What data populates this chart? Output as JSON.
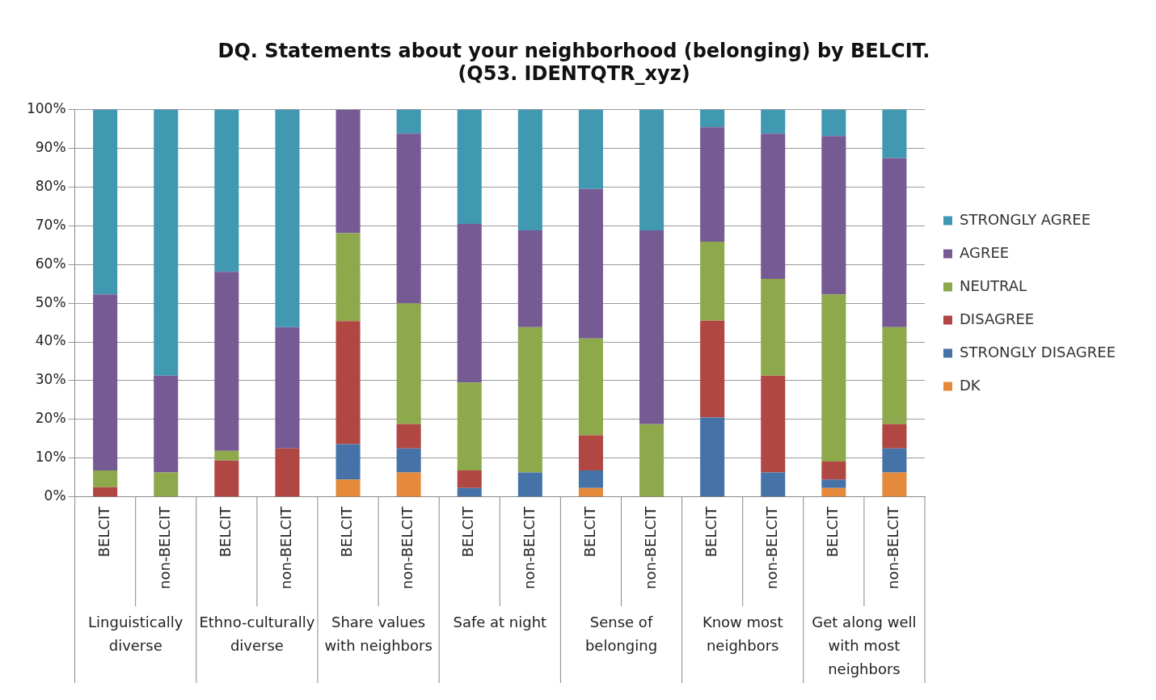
{
  "chart_data": {
    "type": "bar",
    "stacked": true,
    "title": "DQ. Statements about your neighborhood (belonging) by BELCIT.\n(Q53. IDENTQTR_xyz)",
    "categories": [
      "BELCIT",
      "non-BELCIT",
      "BELCIT",
      "non-BELCIT",
      "BELCIT",
      "non-BELCIT",
      "BELCIT",
      "non-BELCIT",
      "BELCIT",
      "non-BELCIT",
      "BELCIT",
      "non-BELCIT",
      "BELCIT",
      "non-BELCIT"
    ],
    "series": [
      {
        "name": "DK",
        "color": "#e58a3a",
        "values": [
          0,
          0,
          0,
          0,
          4.5,
          6.3,
          0,
          0,
          2.3,
          0,
          0,
          0,
          2.3,
          6.3
        ]
      },
      {
        "name": "STRONGLY DISAGREE",
        "color": "#4573a8",
        "values": [
          0,
          0,
          0,
          0,
          9.1,
          6.2,
          2.3,
          6.3,
          4.5,
          0,
          20.5,
          6.3,
          2.2,
          6.2
        ]
      },
      {
        "name": "DISAGREE",
        "color": "#b04743",
        "values": [
          2.5,
          0,
          9.4,
          12.5,
          31.8,
          6.3,
          4.5,
          0,
          9.1,
          0,
          25,
          25,
          4.6,
          6.3
        ]
      },
      {
        "name": "NEUTRAL",
        "color": "#8ea84c",
        "values": [
          4.3,
          6.3,
          2.5,
          0,
          22.7,
          31.2,
          22.7,
          37.5,
          25,
          18.8,
          20.4,
          25,
          43.2,
          25
        ]
      },
      {
        "name": "AGREE",
        "color": "#765a94",
        "values": [
          45.5,
          25,
          46.2,
          31.3,
          31.8,
          43.8,
          41,
          25,
          38.6,
          50,
          29.6,
          37.5,
          40.9,
          43.7
        ]
      },
      {
        "name": "STRONGLY AGREE",
        "color": "#4198b1",
        "values": [
          47.7,
          68.7,
          41.9,
          56.2,
          0,
          6.2,
          29.5,
          31.2,
          20.5,
          31.2,
          4.5,
          6.2,
          6.8,
          12.5
        ]
      }
    ],
    "ylim": [
      0,
      100
    ],
    "yticks": [
      {
        "value": 0,
        "label": "0%"
      },
      {
        "value": 10,
        "label": "10%"
      },
      {
        "value": 20,
        "label": "20%"
      },
      {
        "value": 30,
        "label": "30%"
      },
      {
        "value": 40,
        "label": "40%"
      },
      {
        "value": 50,
        "label": "50%"
      },
      {
        "value": 60,
        "label": "60%"
      },
      {
        "value": 70,
        "label": "70%"
      },
      {
        "value": 80,
        "label": "80%"
      },
      {
        "value": 90,
        "label": "90%"
      },
      {
        "value": 100,
        "label": "100%"
      }
    ],
    "grid": "y",
    "legend": "right",
    "annotations": [
      "Linguistically diverse",
      "Ethno-culturally diverse",
      "Share values with neighbors",
      "Safe at night",
      "Sense of belonging",
      "Know most neighbors",
      "Get along well with most neighbors"
    ]
  }
}
